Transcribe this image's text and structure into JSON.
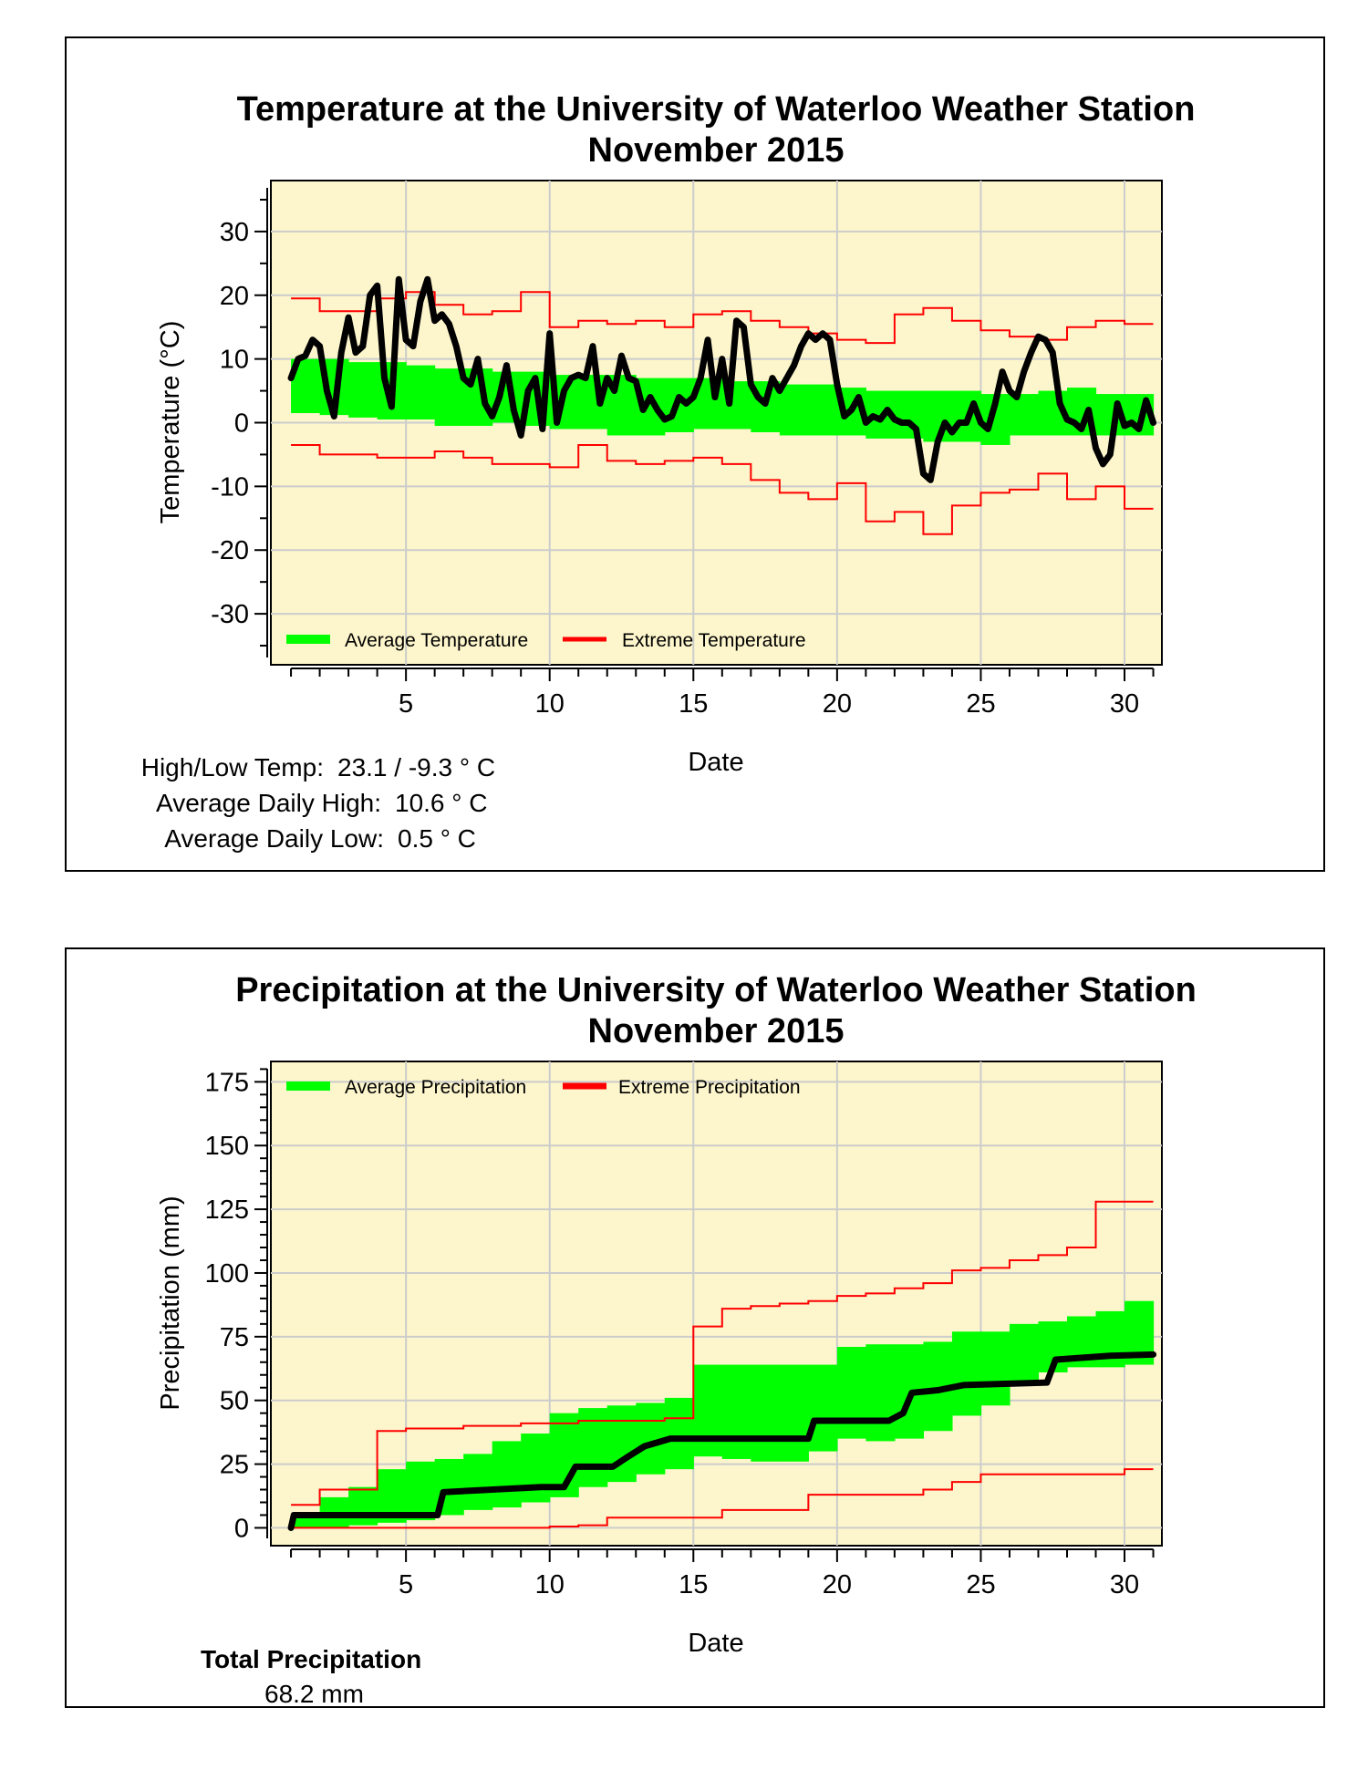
{
  "chart_data": [
    {
      "type": "line",
      "title": "Temperature at the University of Waterloo Weather Station",
      "subtitle": "November 2015",
      "xlabel": "Date",
      "ylabel": "Temperature (°C)",
      "xlim": [
        0.3,
        31.3
      ],
      "ylim": [
        -38,
        38
      ],
      "xticks": [
        5,
        10,
        15,
        20,
        25,
        30
      ],
      "yticks": [
        30,
        20,
        10,
        0,
        -10,
        -20,
        -30
      ],
      "grid": true,
      "legend": {
        "position": "bottom-left",
        "items": [
          "Average Temperature",
          "Extreme Temperature"
        ]
      },
      "average_band": [
        [
          1,
          1.5,
          10
        ],
        [
          2,
          1.2,
          10
        ],
        [
          3,
          0.8,
          9.5
        ],
        [
          4,
          0.5,
          9.5
        ],
        [
          5,
          0.5,
          9
        ],
        [
          6,
          -0.5,
          8.5
        ],
        [
          7,
          -0.5,
          8.5
        ],
        [
          8,
          0,
          8
        ],
        [
          9,
          -0.5,
          8
        ],
        [
          10,
          -1,
          7.5
        ],
        [
          11,
          -1,
          7.5
        ],
        [
          12,
          -2,
          7.5
        ],
        [
          13,
          -2,
          7
        ],
        [
          14,
          -1.5,
          7
        ],
        [
          15,
          -1,
          7
        ],
        [
          16,
          -1,
          6.5
        ],
        [
          17,
          -1.5,
          6.5
        ],
        [
          18,
          -2,
          6
        ],
        [
          19,
          -2,
          6
        ],
        [
          20,
          -2,
          5.5
        ],
        [
          21,
          -2.5,
          5
        ],
        [
          22,
          -2.5,
          5
        ],
        [
          23,
          -3,
          5
        ],
        [
          24,
          -3,
          5
        ],
        [
          25,
          -3.5,
          4.5
        ],
        [
          26,
          -2,
          4.5
        ],
        [
          27,
          -2,
          5
        ],
        [
          28,
          -2,
          5.5
        ],
        [
          29,
          -2,
          4.5
        ],
        [
          30,
          -2,
          4.5
        ]
      ],
      "extreme_high": [
        [
          1,
          19.5
        ],
        [
          2,
          17.5
        ],
        [
          3,
          17.5
        ],
        [
          4,
          19.5
        ],
        [
          5,
          20.5
        ],
        [
          6,
          18.5
        ],
        [
          7,
          17
        ],
        [
          8,
          17.5
        ],
        [
          9,
          20.5
        ],
        [
          10,
          15
        ],
        [
          11,
          16
        ],
        [
          12,
          15.5
        ],
        [
          13,
          16
        ],
        [
          14,
          15
        ],
        [
          15,
          17
        ],
        [
          16,
          17.5
        ],
        [
          17,
          16
        ],
        [
          18,
          15
        ],
        [
          19,
          14
        ],
        [
          20,
          13
        ],
        [
          21,
          12.5
        ],
        [
          22,
          17
        ],
        [
          23,
          18
        ],
        [
          24,
          16
        ],
        [
          25,
          14.5
        ],
        [
          26,
          13.5
        ],
        [
          27,
          13
        ],
        [
          28,
          15
        ],
        [
          29,
          16
        ],
        [
          30,
          15.5
        ]
      ],
      "extreme_low": [
        [
          1,
          -3.5
        ],
        [
          2,
          -5
        ],
        [
          3,
          -5
        ],
        [
          4,
          -5.5
        ],
        [
          5,
          -5.5
        ],
        [
          6,
          -4.5
        ],
        [
          7,
          -5.5
        ],
        [
          8,
          -6.5
        ],
        [
          9,
          -6.5
        ],
        [
          10,
          -7
        ],
        [
          11,
          -3.5
        ],
        [
          12,
          -6
        ],
        [
          13,
          -6.5
        ],
        [
          14,
          -6
        ],
        [
          15,
          -5.5
        ],
        [
          16,
          -6.5
        ],
        [
          17,
          -9
        ],
        [
          18,
          -11
        ],
        [
          19,
          -12
        ],
        [
          20,
          -9.5
        ],
        [
          21,
          -15.5
        ],
        [
          22,
          -14
        ],
        [
          23,
          -17.5
        ],
        [
          24,
          -13
        ],
        [
          25,
          -11
        ],
        [
          26,
          -10.5
        ],
        [
          27,
          -8
        ],
        [
          28,
          -12
        ],
        [
          29,
          -10
        ],
        [
          30,
          -13.5
        ]
      ],
      "observed": [
        [
          1,
          7
        ],
        [
          1.25,
          10
        ],
        [
          1.5,
          10.5
        ],
        [
          1.75,
          13
        ],
        [
          2.0,
          12
        ],
        [
          2.25,
          5
        ],
        [
          2.5,
          1
        ],
        [
          2.75,
          11
        ],
        [
          3.0,
          16.5
        ],
        [
          3.25,
          11
        ],
        [
          3.5,
          12
        ],
        [
          3.75,
          20
        ],
        [
          4.0,
          21.5
        ],
        [
          4.25,
          7
        ],
        [
          4.5,
          2.5
        ],
        [
          4.75,
          22.5
        ],
        [
          5.0,
          13
        ],
        [
          5.25,
          12
        ],
        [
          5.5,
          19
        ],
        [
          5.75,
          22.5
        ],
        [
          6.0,
          16
        ],
        [
          6.25,
          17
        ],
        [
          6.5,
          15.5
        ],
        [
          6.75,
          12
        ],
        [
          7.0,
          7
        ],
        [
          7.25,
          6
        ],
        [
          7.5,
          10
        ],
        [
          7.75,
          3
        ],
        [
          8.0,
          1
        ],
        [
          8.25,
          4
        ],
        [
          8.5,
          9
        ],
        [
          8.75,
          2
        ],
        [
          9.0,
          -2
        ],
        [
          9.25,
          5
        ],
        [
          9.5,
          7
        ],
        [
          9.75,
          -1
        ],
        [
          10.0,
          14
        ],
        [
          10.25,
          0
        ],
        [
          10.5,
          5
        ],
        [
          10.75,
          7
        ],
        [
          11.0,
          7.5
        ],
        [
          11.25,
          7
        ],
        [
          11.5,
          12
        ],
        [
          11.75,
          3
        ],
        [
          12.0,
          7
        ],
        [
          12.25,
          5
        ],
        [
          12.5,
          10.5
        ],
        [
          12.75,
          7
        ],
        [
          13.0,
          6.5
        ],
        [
          13.25,
          2
        ],
        [
          13.5,
          4
        ],
        [
          13.75,
          2
        ],
        [
          14.0,
          0.5
        ],
        [
          14.25,
          1
        ],
        [
          14.5,
          4
        ],
        [
          14.75,
          3
        ],
        [
          15.0,
          4
        ],
        [
          15.25,
          7
        ],
        [
          15.5,
          13
        ],
        [
          15.75,
          4
        ],
        [
          16.0,
          10
        ],
        [
          16.25,
          3
        ],
        [
          16.5,
          16
        ],
        [
          16.75,
          15
        ],
        [
          17.0,
          6
        ],
        [
          17.25,
          4
        ],
        [
          17.5,
          3
        ],
        [
          17.75,
          7
        ],
        [
          18.0,
          5
        ],
        [
          18.25,
          7
        ],
        [
          18.5,
          9
        ],
        [
          18.75,
          12
        ],
        [
          19.0,
          14
        ],
        [
          19.25,
          13
        ],
        [
          19.5,
          14
        ],
        [
          19.75,
          13
        ],
        [
          20.0,
          6
        ],
        [
          20.25,
          1
        ],
        [
          20.5,
          2
        ],
        [
          20.75,
          4
        ],
        [
          21.0,
          0
        ],
        [
          21.25,
          1
        ],
        [
          21.5,
          0.5
        ],
        [
          21.75,
          2
        ],
        [
          22.0,
          0.5
        ],
        [
          22.25,
          0
        ],
        [
          22.5,
          0
        ],
        [
          22.75,
          -1
        ],
        [
          23.0,
          -8
        ],
        [
          23.25,
          -9
        ],
        [
          23.5,
          -3
        ],
        [
          23.75,
          0
        ],
        [
          24.0,
          -1.5
        ],
        [
          24.25,
          0
        ],
        [
          24.5,
          0
        ],
        [
          24.75,
          3
        ],
        [
          25.0,
          0
        ],
        [
          25.25,
          -1
        ],
        [
          25.5,
          3
        ],
        [
          25.75,
          8
        ],
        [
          26.0,
          5
        ],
        [
          26.25,
          4
        ],
        [
          26.5,
          8
        ],
        [
          26.75,
          11
        ],
        [
          27.0,
          13.5
        ],
        [
          27.25,
          13
        ],
        [
          27.5,
          11
        ],
        [
          27.75,
          3
        ],
        [
          28.0,
          0.5
        ],
        [
          28.25,
          0
        ],
        [
          28.5,
          -1
        ],
        [
          28.75,
          2
        ],
        [
          29.0,
          -4
        ],
        [
          29.25,
          -6.5
        ],
        [
          29.5,
          -5
        ],
        [
          29.75,
          3
        ],
        [
          30.0,
          -0.5
        ],
        [
          30.25,
          0
        ],
        [
          30.5,
          -1
        ],
        [
          30.75,
          3.5
        ],
        [
          31.0,
          0
        ]
      ],
      "stats": {
        "high_low_label": "High/Low Temp:",
        "high_low_value": "23.1 / -9.3 ° C",
        "avg_high_label": "Average Daily High:",
        "avg_high_value": "10.6 ° C",
        "avg_low_label": "Average Daily Low:",
        "avg_low_value": "0.5 ° C"
      }
    },
    {
      "type": "line",
      "title": "Precipitation at the University of Waterloo Weather Station",
      "subtitle": "November 2015",
      "xlabel": "Date",
      "ylabel": "Precipitation (mm)",
      "xlim": [
        0.3,
        31.3
      ],
      "ylim": [
        -7,
        183
      ],
      "xticks": [
        5,
        10,
        15,
        20,
        25,
        30
      ],
      "yticks": [
        175,
        150,
        125,
        100,
        75,
        50,
        25,
        0
      ],
      "grid": true,
      "legend": {
        "position": "top-left",
        "items": [
          "Average Precipitation",
          "Extreme Precipitation"
        ]
      },
      "average_band": [
        [
          1,
          0,
          4
        ],
        [
          2,
          0,
          12
        ],
        [
          3,
          1,
          16
        ],
        [
          4,
          2,
          23
        ],
        [
          5,
          3,
          26
        ],
        [
          6,
          5,
          27
        ],
        [
          7,
          7,
          29
        ],
        [
          8,
          8,
          34
        ],
        [
          9,
          10,
          37
        ],
        [
          10,
          12,
          45
        ],
        [
          11,
          16,
          47
        ],
        [
          12,
          18,
          48
        ],
        [
          13,
          21,
          49
        ],
        [
          14,
          23,
          51
        ],
        [
          15,
          28,
          64
        ],
        [
          16,
          27,
          64
        ],
        [
          17,
          26,
          64
        ],
        [
          18,
          26,
          64
        ],
        [
          19,
          30,
          64
        ],
        [
          20,
          35,
          71
        ],
        [
          21,
          34,
          72
        ],
        [
          22,
          35,
          72
        ],
        [
          23,
          38,
          73
        ],
        [
          24,
          44,
          77
        ],
        [
          25,
          48,
          77
        ],
        [
          26,
          56,
          80
        ],
        [
          27,
          61,
          81
        ],
        [
          28,
          63,
          83
        ],
        [
          29,
          63,
          85
        ],
        [
          30,
          64,
          89
        ]
      ],
      "extreme_high": [
        [
          1,
          9
        ],
        [
          2,
          15
        ],
        [
          3,
          15
        ],
        [
          4,
          38
        ],
        [
          5,
          39
        ],
        [
          6,
          39
        ],
        [
          7,
          40
        ],
        [
          8,
          40
        ],
        [
          9,
          41
        ],
        [
          10,
          41
        ],
        [
          11,
          42
        ],
        [
          12,
          42
        ],
        [
          13,
          42
        ],
        [
          14,
          43
        ],
        [
          15,
          79
        ],
        [
          16,
          86
        ],
        [
          17,
          87
        ],
        [
          18,
          88
        ],
        [
          19,
          89
        ],
        [
          20,
          91
        ],
        [
          21,
          92
        ],
        [
          22,
          94
        ],
        [
          23,
          96
        ],
        [
          24,
          101
        ],
        [
          25,
          102
        ],
        [
          26,
          105
        ],
        [
          27,
          107
        ],
        [
          28,
          110
        ],
        [
          29,
          128
        ],
        [
          30,
          128
        ]
      ],
      "extreme_low": [
        [
          1,
          0
        ],
        [
          2,
          0
        ],
        [
          3,
          0
        ],
        [
          4,
          0
        ],
        [
          5,
          0
        ],
        [
          6,
          0
        ],
        [
          7,
          0
        ],
        [
          8,
          0
        ],
        [
          9,
          0
        ],
        [
          10,
          0.5
        ],
        [
          11,
          1
        ],
        [
          12,
          4
        ],
        [
          13,
          4
        ],
        [
          14,
          4
        ],
        [
          15,
          4
        ],
        [
          16,
          7
        ],
        [
          17,
          7
        ],
        [
          18,
          7
        ],
        [
          19,
          13
        ],
        [
          20,
          13
        ],
        [
          21,
          13
        ],
        [
          22,
          13
        ],
        [
          23,
          15
        ],
        [
          24,
          18
        ],
        [
          25,
          21
        ],
        [
          26,
          21
        ],
        [
          27,
          21
        ],
        [
          28,
          21
        ],
        [
          29,
          21
        ],
        [
          30,
          23
        ]
      ],
      "observed": [
        [
          1,
          0
        ],
        [
          1.1,
          5
        ],
        [
          5.3,
          5
        ],
        [
          6.1,
          5
        ],
        [
          6.3,
          14
        ],
        [
          9.7,
          16
        ],
        [
          10.5,
          16
        ],
        [
          10.9,
          24
        ],
        [
          11.7,
          24
        ],
        [
          12.2,
          24
        ],
        [
          12.6,
          27
        ],
        [
          13.3,
          32
        ],
        [
          14.2,
          35
        ],
        [
          19.0,
          35
        ],
        [
          19.2,
          42
        ],
        [
          21.8,
          42
        ],
        [
          22.3,
          45
        ],
        [
          22.6,
          53
        ],
        [
          23.5,
          54
        ],
        [
          24.4,
          56
        ],
        [
          27.3,
          57
        ],
        [
          27.6,
          66
        ],
        [
          29.5,
          67.5
        ],
        [
          31,
          68
        ]
      ],
      "stats": {
        "total_label": "Total Precipitation",
        "total_value": "68.2 mm"
      }
    }
  ],
  "colors": {
    "plot_bg": "#fdf6cc",
    "average": "#00ff00",
    "extreme": "#ff0000",
    "observed": "#000000",
    "grid": "#cccccc"
  }
}
